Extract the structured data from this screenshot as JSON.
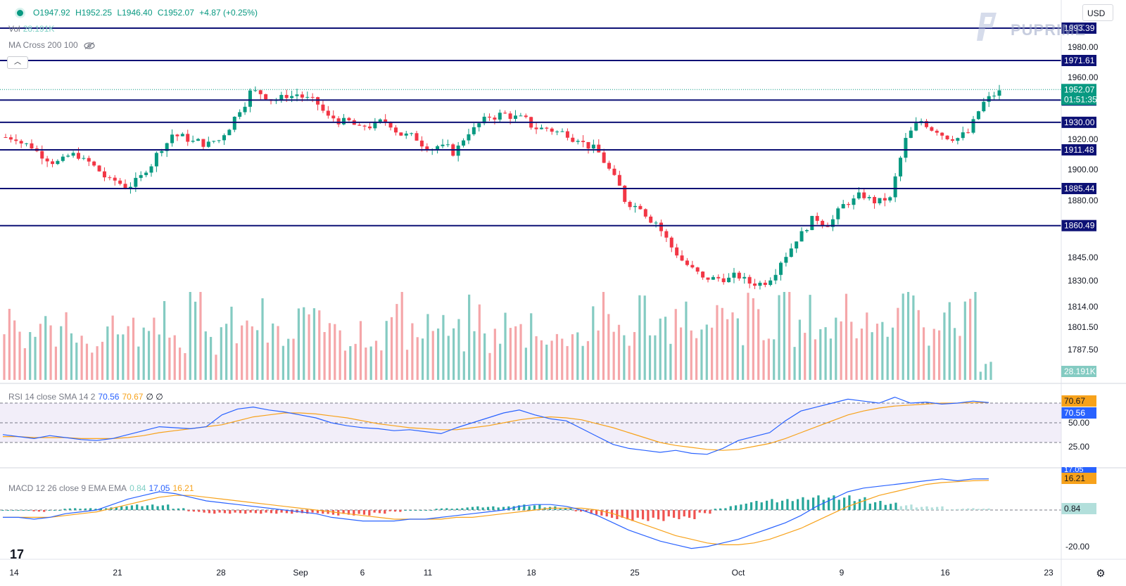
{
  "header": {
    "open": "O1947.92",
    "high": "H1952.25",
    "low": "L1946.40",
    "close": "C1952.07",
    "change": "+4.87 (+0.25%)"
  },
  "legends": {
    "vol_label": "Vol",
    "vol_value": "28.191K",
    "ma_label": "MA Cross 200 100",
    "rsi_label": "RSI 14 close SMA 14 2",
    "rsi_value": "70.56",
    "rsi_sma_value": "70.67",
    "rsi_extra": "∅ ∅",
    "macd_label": "MACD 12 26 close 9 EMA EMA",
    "macd_hist": "0.84",
    "macd_line": "17.05",
    "macd_signal": "16.21"
  },
  "toolbar": {
    "currency": "USD",
    "collapse_icon": "chevron-up-icon"
  },
  "brand": {
    "logo_text": "PUPRIME",
    "platform_mark": "17"
  },
  "colors": {
    "up": "#089981",
    "down": "#f23645",
    "vol_up": "#84cbc2",
    "vol_down": "#f5a6a9",
    "level_line": "#0d1175",
    "rsi_line": "#2962ff",
    "sma_line": "#f7a21b",
    "macd_line": "#2962ff",
    "signal_line": "#f7a21b"
  },
  "chart_data": {
    "type": "candlestick",
    "symbol_currency": "USD",
    "price_axis": {
      "ticks": [
        "1980.00",
        "1960.00",
        "1920.00",
        "1900.00",
        "1880.00",
        "1845.00",
        "1830.00",
        "1814.00",
        "1801.50",
        "1787.50"
      ],
      "last_price": "1952.07",
      "countdown": "01:51:35",
      "vol_tag": "28.191K"
    },
    "levels": [
      {
        "value": 1993.39,
        "label": "1993.39"
      },
      {
        "value": 1971.61,
        "label": "1971.61"
      },
      {
        "value": 1945.0,
        "label": "1945.00"
      },
      {
        "value": 1930.0,
        "label": "1930.00"
      },
      {
        "value": 1911.48,
        "label": "1911.48"
      },
      {
        "value": 1885.44,
        "label": "1885.44"
      },
      {
        "value": 1860.49,
        "label": "1860.49"
      }
    ],
    "x_labels": [
      "14",
      "21",
      "28",
      "Sep",
      "6",
      "11",
      "18",
      "25",
      "Oct",
      "9",
      "16",
      "23"
    ],
    "close_path": [
      1920,
      1914,
      1906,
      1904,
      1908,
      1900,
      1890,
      1887,
      1893,
      1908,
      1922,
      1919,
      1916,
      1918,
      1933,
      1950,
      1948,
      1946,
      1949,
      1944,
      1933,
      1930,
      1925,
      1928,
      1929,
      1921,
      1916,
      1914,
      1910,
      1924,
      1931,
      1935,
      1933,
      1928,
      1926,
      1923,
      1920,
      1912,
      1898,
      1878,
      1874,
      1863,
      1846,
      1834,
      1824,
      1825,
      1826,
      1822,
      1823,
      1837,
      1852,
      1864,
      1862,
      1874,
      1880,
      1877,
      1878,
      1918,
      1931,
      1925,
      1920,
      1923,
      1943,
      1950
    ],
    "rsi": {
      "levels": [
        "70.67",
        "70.56",
        "50.00",
        "25.00"
      ],
      "upper_band": 70,
      "middle": 50,
      "lower_band": 30,
      "path": [
        38,
        36,
        34,
        37,
        35,
        33,
        32,
        34,
        38,
        42,
        46,
        45,
        44,
        46,
        58,
        64,
        66,
        63,
        61,
        58,
        55,
        50,
        47,
        45,
        44,
        42,
        43,
        41,
        39,
        45,
        50,
        55,
        60,
        63,
        58,
        54,
        52,
        44,
        36,
        28,
        24,
        22,
        20,
        22,
        19,
        18,
        24,
        32,
        36,
        40,
        52,
        62,
        66,
        70,
        74,
        72,
        70,
        76,
        70,
        71,
        69,
        70,
        72,
        70.56
      ],
      "sma_path": [
        36,
        36,
        35,
        35,
        35,
        34,
        34,
        34,
        35,
        37,
        40,
        42,
        44,
        46,
        48,
        52,
        56,
        58,
        60,
        60,
        59,
        57,
        55,
        52,
        49,
        47,
        45,
        44,
        43,
        43,
        45,
        47,
        50,
        53,
        55,
        56,
        55,
        53,
        49,
        45,
        40,
        35,
        30,
        27,
        25,
        23,
        22,
        23,
        26,
        29,
        34,
        40,
        46,
        52,
        58,
        62,
        65,
        67,
        68,
        69,
        70,
        70,
        70.5,
        70.67
      ]
    },
    "macd": {
      "ticks": [
        "17.05",
        "16.21",
        "0.84",
        "-20.00"
      ],
      "zero": 0,
      "ylim": [
        -24,
        21
      ],
      "macd_path": [
        -4,
        -4,
        -5,
        -4,
        -2,
        -1,
        0,
        3,
        6,
        8,
        10,
        9,
        7,
        5,
        4,
        3,
        2,
        1,
        0,
        -1,
        -2,
        -4,
        -5,
        -6,
        -6,
        -6,
        -5,
        -5,
        -4,
        -3,
        -2,
        -1,
        0,
        2,
        3,
        3,
        2,
        0,
        -3,
        -7,
        -11,
        -14,
        -17,
        -19,
        -21,
        -20,
        -18,
        -16,
        -13,
        -10,
        -7,
        -3,
        2,
        6,
        10,
        12,
        13,
        14,
        15,
        16,
        17,
        16,
        17,
        17.05
      ],
      "signal_path": [
        -4,
        -4,
        -4,
        -4,
        -3,
        -2,
        -1,
        1,
        3,
        5,
        7,
        8,
        8,
        7,
        6,
        5,
        4,
        3,
        2,
        1,
        0,
        -1,
        -2,
        -3,
        -4,
        -5,
        -5,
        -5,
        -5,
        -4,
        -4,
        -3,
        -2,
        -1,
        0,
        1,
        1,
        1,
        0,
        -2,
        -5,
        -8,
        -11,
        -14,
        -16,
        -18,
        -19,
        -19,
        -18,
        -16,
        -13,
        -10,
        -6,
        -2,
        2,
        5,
        8,
        10,
        12,
        14,
        15,
        15.5,
        16,
        16.21
      ],
      "hist": [
        0,
        0,
        -1,
        0,
        1,
        1,
        1,
        2,
        3,
        3,
        3,
        1,
        -1,
        -2,
        -2,
        -2,
        -2,
        -2,
        -2,
        -2,
        -2,
        -3,
        -3,
        -3,
        -2,
        -1,
        0,
        0,
        1,
        1,
        2,
        2,
        2,
        3,
        3,
        2,
        1,
        -1,
        -3,
        -5,
        -6,
        -6,
        -6,
        -5,
        -5,
        -2,
        1,
        3,
        5,
        6,
        6,
        7,
        8,
        8,
        8,
        7,
        5,
        4,
        3,
        2,
        2,
        0.5,
        1,
        0.84
      ]
    },
    "volume": [
      60,
      40,
      55,
      48,
      62,
      50,
      45,
      70,
      58,
      52,
      66,
      49,
      80,
      44,
      63,
      57,
      71,
      53,
      47,
      68,
      59,
      76,
      50,
      61,
      55,
      82,
      46,
      67,
      58,
      52,
      73,
      49,
      64,
      56,
      70,
      45,
      60,
      53,
      78,
      62,
      57,
      81,
      66,
      59,
      72,
      54,
      69,
      63,
      77,
      50,
      85,
      58,
      74,
      61,
      90,
      56,
      71,
      64,
      88,
      62,
      80,
      67,
      96,
      15
    ]
  }
}
